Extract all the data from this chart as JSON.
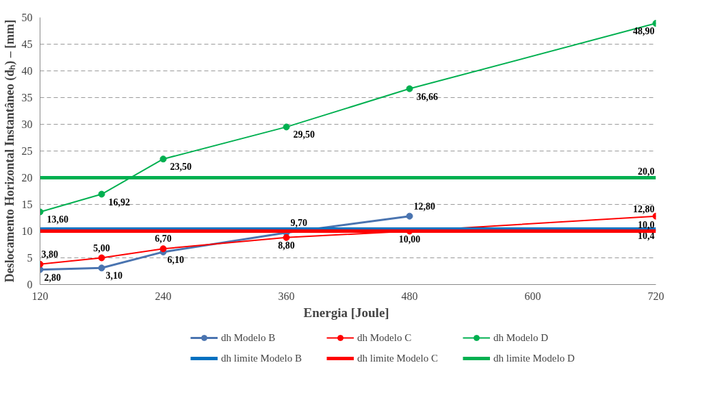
{
  "chart_data": {
    "type": "line",
    "xlabel": "Energia  [Joule]",
    "ylabel": "Deslocamento Horizontal Instantâneo (dₕ) – [mm]",
    "xlim": [
      120,
      720
    ],
    "xticks": [
      120,
      240,
      360,
      480,
      600,
      720
    ],
    "ylim": [
      0,
      50
    ],
    "yticks": [
      0,
      5,
      10,
      15,
      20,
      25,
      30,
      35,
      40,
      45,
      50
    ],
    "grid": "y",
    "legend": "bottom",
    "marker": "circle",
    "series": [
      {
        "name": "dh Modelo B",
        "color": "#4a74b0",
        "x": [
          120,
          180,
          240,
          360,
          480
        ],
        "values": [
          2.8,
          3.1,
          6.1,
          9.7,
          12.8
        ],
        "value_labels": [
          "2,80",
          "3,10",
          "6,10",
          "9,70",
          "12,80"
        ]
      },
      {
        "name": "dh Modelo C",
        "color": "#ff0000",
        "x": [
          120,
          180,
          240,
          360,
          480,
          720
        ],
        "values": [
          3.8,
          5.0,
          6.7,
          8.8,
          10.0,
          12.8
        ],
        "value_labels": [
          "3,80",
          "5,00",
          "6,70",
          "8,80",
          "10,00",
          "12,80"
        ]
      },
      {
        "name": "dh Modelo D",
        "color": "#00b050",
        "x": [
          120,
          180,
          240,
          360,
          480,
          720
        ],
        "values": [
          13.6,
          16.92,
          23.5,
          29.5,
          36.66,
          48.9
        ],
        "value_labels": [
          "13,60",
          "16,92",
          "23,50",
          "29,50",
          "36,66",
          "48,90"
        ]
      },
      {
        "name": "dh limite Modelo B",
        "color": "#0070c0",
        "marker": "none",
        "x": [
          120,
          720
        ],
        "values": [
          10.4,
          10.4
        ],
        "value_labels": [
          null,
          "10,4"
        ]
      },
      {
        "name": "dh limite Modelo C",
        "color": "#ff0000",
        "marker": "none",
        "x": [
          120,
          720
        ],
        "values": [
          10.0,
          10.0
        ],
        "value_labels": [
          null,
          "10,0"
        ]
      },
      {
        "name": "dh limite Modelo D",
        "color": "#00b050",
        "marker": "none",
        "x": [
          120,
          720
        ],
        "values": [
          20.0,
          20.0
        ],
        "value_labels": [
          null,
          "20,0"
        ]
      }
    ]
  }
}
